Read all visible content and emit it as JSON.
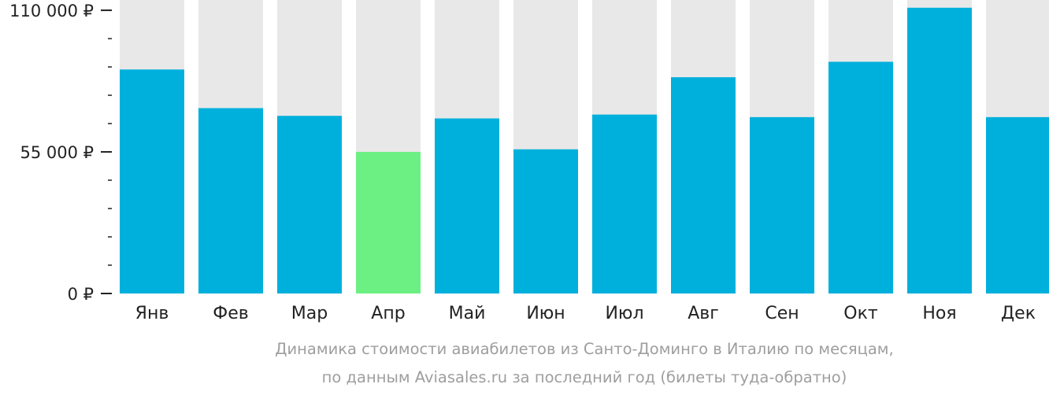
{
  "chart_data": {
    "type": "bar",
    "categories": [
      "Янв",
      "Фев",
      "Мар",
      "Апр",
      "Май",
      "Июн",
      "Июл",
      "Авг",
      "Сен",
      "Окт",
      "Ноя",
      "Дек"
    ],
    "values": [
      87000,
      72000,
      69000,
      55000,
      68000,
      56000,
      69500,
      84000,
      68500,
      90000,
      111000,
      68500
    ],
    "ylim": [
      0,
      114000
    ],
    "yticks": [
      {
        "value": 0,
        "label": "0 ₽"
      },
      {
        "value": 55000,
        "label": "55 000 ₽"
      },
      {
        "value": 110000,
        "label": "110 000 ₽"
      }
    ],
    "minor_tick_step": 11000,
    "highlight_index": 3,
    "colors": {
      "bar": "#00b0dc",
      "highlight": "#6cf084",
      "background_bar": "#e8e8e8",
      "axis": "#222222"
    },
    "caption": [
      "Динамика стоимости авиабилетов из Санто-Доминго в Италию по месяцам,",
      "по данным Aviasales.ru за последний год (билеты туда-обратно)"
    ]
  }
}
